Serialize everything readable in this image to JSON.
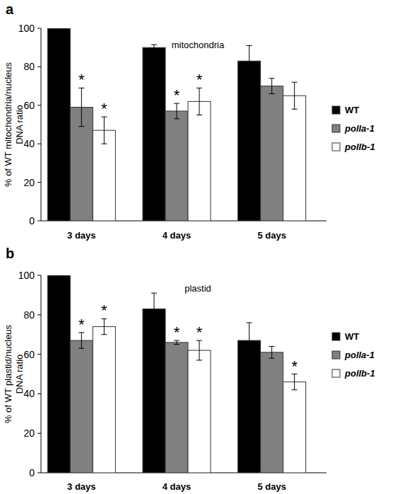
{
  "chart_data": [
    {
      "type": "bar",
      "panel": "a",
      "title": "mitochondria",
      "y_label": [
        "% of WT mitochondria/nucleus",
        "DNA ratio"
      ],
      "categories": [
        "3 days",
        "4 days",
        "5 days"
      ],
      "annotation": "*",
      "series": [
        {
          "name": "WT",
          "color": "#000000",
          "values": [
            100,
            90,
            83
          ],
          "errors": [
            7,
            1.5,
            8
          ],
          "significant": [
            false,
            false,
            false
          ]
        },
        {
          "name": "polla-1",
          "color": "#808080",
          "values": [
            59,
            57,
            70
          ],
          "errors": [
            10,
            4,
            4
          ],
          "significant": [
            true,
            true,
            false
          ]
        },
        {
          "name": "pollb-1",
          "color": "#ffffff",
          "values": [
            47,
            62,
            65
          ],
          "errors": [
            7,
            7,
            7
          ],
          "significant": [
            true,
            true,
            false
          ]
        }
      ],
      "ylim": [
        0,
        100
      ],
      "yticks": [
        0,
        20,
        40,
        60,
        80,
        100
      ],
      "grid": false,
      "legend": "right"
    },
    {
      "type": "bar",
      "panel": "b",
      "title": "plastid",
      "y_label": [
        "% of WT plastid/nucleus",
        "DNA ratio"
      ],
      "categories": [
        "3 days",
        "4 days",
        "5 days"
      ],
      "annotation": "*",
      "series": [
        {
          "name": "WT",
          "color": "#000000",
          "values": [
            100,
            83,
            67
          ],
          "errors": [
            3,
            8,
            9
          ],
          "significant": [
            false,
            false,
            false
          ]
        },
        {
          "name": "polla-1",
          "color": "#808080",
          "values": [
            67,
            66,
            61
          ],
          "errors": [
            4,
            1,
            3
          ],
          "significant": [
            true,
            true,
            false
          ]
        },
        {
          "name": "pollb-1",
          "color": "#ffffff",
          "values": [
            74,
            62,
            46
          ],
          "errors": [
            4,
            5,
            4
          ],
          "significant": [
            true,
            true,
            true
          ]
        }
      ],
      "ylim": [
        0,
        100
      ],
      "yticks": [
        0,
        20,
        40,
        60,
        80,
        100
      ],
      "grid": false,
      "legend": "right"
    }
  ]
}
